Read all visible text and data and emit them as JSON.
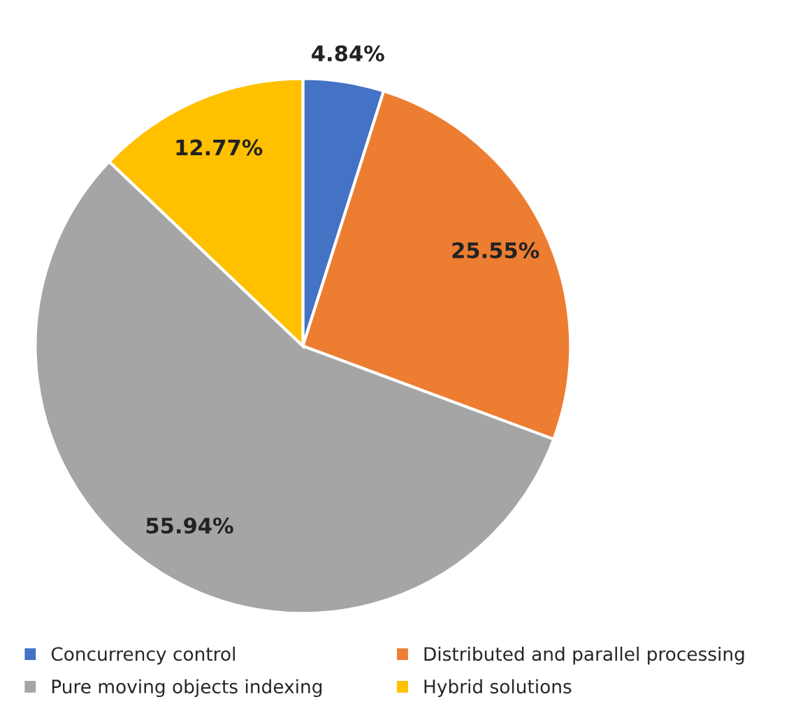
{
  "chart_data": {
    "type": "pie",
    "categories": [
      "Concurrency control",
      "Distributed and parallel processing",
      "Pure moving objects indexing",
      "Hybrid solutions"
    ],
    "values": [
      4.84,
      25.55,
      55.94,
      12.77
    ],
    "colors": [
      "#4472c4",
      "#ed7d31",
      "#a5a5a5",
      "#ffc000"
    ],
    "value_labels": [
      "4.84%",
      "25.55%",
      "55.94%",
      "12.77%"
    ],
    "legend": "bottom"
  }
}
